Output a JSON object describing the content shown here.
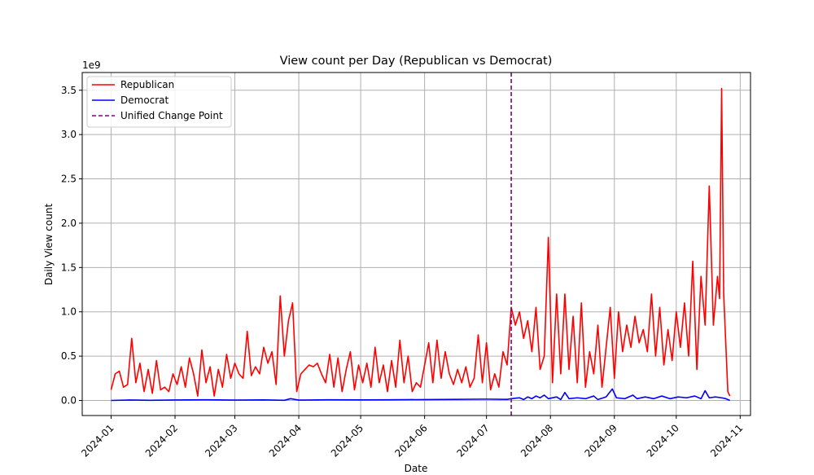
{
  "chart_data": {
    "type": "line",
    "title": "View count per Day (Republican vs Democrat)",
    "xlabel": "Date",
    "ylabel": "Daily View count",
    "y_offset_label": "1e9",
    "xlim": [
      "2023-12-18",
      "2024-11-06"
    ],
    "ylim": [
      -0.17,
      3.7
    ],
    "x_ticks": [
      "2024-01",
      "2024-02",
      "2024-03",
      "2024-04",
      "2024-05",
      "2024-06",
      "2024-07",
      "2024-08",
      "2024-09",
      "2024-10",
      "2024-11"
    ],
    "y_ticks": [
      0.0,
      0.5,
      1.0,
      1.5,
      2.0,
      2.5,
      3.0,
      3.5
    ],
    "y_tick_labels": [
      "0.0",
      "0.5",
      "1.0",
      "1.5",
      "2.0",
      "2.5",
      "3.0",
      "3.5"
    ],
    "grid": true,
    "legend_position": "top-left",
    "change_point": {
      "name": "Unified Change Point",
      "date": "2024-07-13",
      "color": "#800080",
      "style": "dashed"
    },
    "series": [
      {
        "name": "Republican",
        "color": "#ff0000",
        "points": [
          [
            "2024-01-01",
            0.12
          ],
          [
            "2024-01-03",
            0.3
          ],
          [
            "2024-01-05",
            0.33
          ],
          [
            "2024-01-07",
            0.15
          ],
          [
            "2024-01-09",
            0.18
          ],
          [
            "2024-01-11",
            0.7
          ],
          [
            "2024-01-13",
            0.2
          ],
          [
            "2024-01-15",
            0.42
          ],
          [
            "2024-01-17",
            0.1
          ],
          [
            "2024-01-19",
            0.35
          ],
          [
            "2024-01-21",
            0.08
          ],
          [
            "2024-01-23",
            0.45
          ],
          [
            "2024-01-25",
            0.12
          ],
          [
            "2024-01-27",
            0.15
          ],
          [
            "2024-01-29",
            0.1
          ],
          [
            "2024-01-31",
            0.3
          ],
          [
            "2024-02-02",
            0.18
          ],
          [
            "2024-02-04",
            0.38
          ],
          [
            "2024-02-06",
            0.15
          ],
          [
            "2024-02-08",
            0.48
          ],
          [
            "2024-02-10",
            0.3
          ],
          [
            "2024-02-12",
            0.05
          ],
          [
            "2024-02-14",
            0.57
          ],
          [
            "2024-02-16",
            0.2
          ],
          [
            "2024-02-18",
            0.38
          ],
          [
            "2024-02-20",
            0.05
          ],
          [
            "2024-02-22",
            0.35
          ],
          [
            "2024-02-24",
            0.15
          ],
          [
            "2024-02-26",
            0.52
          ],
          [
            "2024-02-28",
            0.25
          ],
          [
            "2024-03-01",
            0.42
          ],
          [
            "2024-03-03",
            0.3
          ],
          [
            "2024-03-05",
            0.25
          ],
          [
            "2024-03-07",
            0.78
          ],
          [
            "2024-03-09",
            0.28
          ],
          [
            "2024-03-11",
            0.38
          ],
          [
            "2024-03-13",
            0.3
          ],
          [
            "2024-03-15",
            0.6
          ],
          [
            "2024-03-17",
            0.42
          ],
          [
            "2024-03-19",
            0.55
          ],
          [
            "2024-03-21",
            0.18
          ],
          [
            "2024-03-23",
            1.18
          ],
          [
            "2024-03-25",
            0.5
          ],
          [
            "2024-03-27",
            0.9
          ],
          [
            "2024-03-29",
            1.1
          ],
          [
            "2024-03-31",
            0.1
          ],
          [
            "2024-04-02",
            0.3
          ],
          [
            "2024-04-04",
            0.35
          ],
          [
            "2024-04-06",
            0.4
          ],
          [
            "2024-04-08",
            0.38
          ],
          [
            "2024-04-10",
            0.42
          ],
          [
            "2024-04-12",
            0.3
          ],
          [
            "2024-04-14",
            0.2
          ],
          [
            "2024-04-16",
            0.52
          ],
          [
            "2024-04-18",
            0.15
          ],
          [
            "2024-04-20",
            0.48
          ],
          [
            "2024-04-22",
            0.1
          ],
          [
            "2024-04-24",
            0.35
          ],
          [
            "2024-04-26",
            0.55
          ],
          [
            "2024-04-28",
            0.12
          ],
          [
            "2024-04-30",
            0.4
          ],
          [
            "2024-05-02",
            0.2
          ],
          [
            "2024-05-04",
            0.42
          ],
          [
            "2024-05-06",
            0.15
          ],
          [
            "2024-05-08",
            0.6
          ],
          [
            "2024-05-10",
            0.2
          ],
          [
            "2024-05-12",
            0.4
          ],
          [
            "2024-05-14",
            0.1
          ],
          [
            "2024-05-16",
            0.45
          ],
          [
            "2024-05-18",
            0.15
          ],
          [
            "2024-05-20",
            0.68
          ],
          [
            "2024-05-22",
            0.2
          ],
          [
            "2024-05-24",
            0.5
          ],
          [
            "2024-05-26",
            0.1
          ],
          [
            "2024-05-28",
            0.2
          ],
          [
            "2024-05-30",
            0.15
          ],
          [
            "2024-06-01",
            0.4
          ],
          [
            "2024-06-03",
            0.65
          ],
          [
            "2024-06-05",
            0.2
          ],
          [
            "2024-06-07",
            0.68
          ],
          [
            "2024-06-09",
            0.25
          ],
          [
            "2024-06-11",
            0.55
          ],
          [
            "2024-06-13",
            0.3
          ],
          [
            "2024-06-15",
            0.18
          ],
          [
            "2024-06-17",
            0.35
          ],
          [
            "2024-06-19",
            0.2
          ],
          [
            "2024-06-21",
            0.38
          ],
          [
            "2024-06-23",
            0.15
          ],
          [
            "2024-06-25",
            0.25
          ],
          [
            "2024-06-27",
            0.74
          ],
          [
            "2024-06-29",
            0.2
          ],
          [
            "2024-07-01",
            0.65
          ],
          [
            "2024-07-03",
            0.12
          ],
          [
            "2024-07-05",
            0.3
          ],
          [
            "2024-07-07",
            0.15
          ],
          [
            "2024-07-09",
            0.55
          ],
          [
            "2024-07-11",
            0.4
          ],
          [
            "2024-07-13",
            1.05
          ],
          [
            "2024-07-15",
            0.85
          ],
          [
            "2024-07-17",
            1.0
          ],
          [
            "2024-07-19",
            0.7
          ],
          [
            "2024-07-21",
            0.9
          ],
          [
            "2024-07-23",
            0.55
          ],
          [
            "2024-07-25",
            1.05
          ],
          [
            "2024-07-27",
            0.35
          ],
          [
            "2024-07-29",
            0.5
          ],
          [
            "2024-07-31",
            1.84
          ],
          [
            "2024-08-02",
            0.2
          ],
          [
            "2024-08-04",
            1.2
          ],
          [
            "2024-08-06",
            0.3
          ],
          [
            "2024-08-08",
            1.2
          ],
          [
            "2024-08-10",
            0.35
          ],
          [
            "2024-08-12",
            0.95
          ],
          [
            "2024-08-14",
            0.2
          ],
          [
            "2024-08-16",
            1.1
          ],
          [
            "2024-08-18",
            0.15
          ],
          [
            "2024-08-20",
            0.55
          ],
          [
            "2024-08-22",
            0.3
          ],
          [
            "2024-08-24",
            0.85
          ],
          [
            "2024-08-26",
            0.15
          ],
          [
            "2024-08-28",
            0.6
          ],
          [
            "2024-08-30",
            1.05
          ],
          [
            "2024-09-01",
            0.25
          ],
          [
            "2024-09-03",
            1.0
          ],
          [
            "2024-09-05",
            0.55
          ],
          [
            "2024-09-07",
            0.85
          ],
          [
            "2024-09-09",
            0.6
          ],
          [
            "2024-09-11",
            0.95
          ],
          [
            "2024-09-13",
            0.65
          ],
          [
            "2024-09-15",
            0.8
          ],
          [
            "2024-09-17",
            0.55
          ],
          [
            "2024-09-19",
            1.2
          ],
          [
            "2024-09-21",
            0.5
          ],
          [
            "2024-09-23",
            1.05
          ],
          [
            "2024-09-25",
            0.4
          ],
          [
            "2024-09-27",
            0.8
          ],
          [
            "2024-09-29",
            0.45
          ],
          [
            "2024-10-01",
            1.0
          ],
          [
            "2024-10-03",
            0.6
          ],
          [
            "2024-10-05",
            1.1
          ],
          [
            "2024-10-07",
            0.5
          ],
          [
            "2024-10-09",
            1.57
          ],
          [
            "2024-10-11",
            0.35
          ],
          [
            "2024-10-13",
            1.4
          ],
          [
            "2024-10-15",
            0.85
          ],
          [
            "2024-10-17",
            2.42
          ],
          [
            "2024-10-19",
            0.85
          ],
          [
            "2024-10-21",
            1.4
          ],
          [
            "2024-10-22",
            1.15
          ],
          [
            "2024-10-23",
            3.52
          ],
          [
            "2024-10-24",
            1.2
          ],
          [
            "2024-10-26",
            0.1
          ],
          [
            "2024-10-27",
            0.05
          ]
        ]
      },
      {
        "name": "Democrat",
        "color": "#0000ff",
        "points": [
          [
            "2024-01-01",
            0.0
          ],
          [
            "2024-01-10",
            0.005
          ],
          [
            "2024-01-20",
            0.002
          ],
          [
            "2024-02-01",
            0.005
          ],
          [
            "2024-02-15",
            0.008
          ],
          [
            "2024-03-01",
            0.004
          ],
          [
            "2024-03-15",
            0.006
          ],
          [
            "2024-03-25",
            0.002
          ],
          [
            "2024-03-28",
            0.02
          ],
          [
            "2024-04-01",
            0.004
          ],
          [
            "2024-04-15",
            0.008
          ],
          [
            "2024-05-01",
            0.006
          ],
          [
            "2024-05-15",
            0.008
          ],
          [
            "2024-06-01",
            0.01
          ],
          [
            "2024-06-15",
            0.012
          ],
          [
            "2024-07-01",
            0.015
          ],
          [
            "2024-07-11",
            0.012
          ],
          [
            "2024-07-13",
            0.02
          ],
          [
            "2024-07-17",
            0.03
          ],
          [
            "2024-07-19",
            0.01
          ],
          [
            "2024-07-21",
            0.04
          ],
          [
            "2024-07-23",
            0.02
          ],
          [
            "2024-07-25",
            0.05
          ],
          [
            "2024-07-27",
            0.03
          ],
          [
            "2024-07-29",
            0.06
          ],
          [
            "2024-07-31",
            0.02
          ],
          [
            "2024-08-04",
            0.04
          ],
          [
            "2024-08-06",
            0.01
          ],
          [
            "2024-08-08",
            0.09
          ],
          [
            "2024-08-10",
            0.02
          ],
          [
            "2024-08-14",
            0.03
          ],
          [
            "2024-08-18",
            0.02
          ],
          [
            "2024-08-22",
            0.05
          ],
          [
            "2024-08-24",
            0.01
          ],
          [
            "2024-08-28",
            0.04
          ],
          [
            "2024-08-31",
            0.13
          ],
          [
            "2024-09-02",
            0.03
          ],
          [
            "2024-09-06",
            0.02
          ],
          [
            "2024-09-10",
            0.06
          ],
          [
            "2024-09-12",
            0.02
          ],
          [
            "2024-09-16",
            0.04
          ],
          [
            "2024-09-20",
            0.02
          ],
          [
            "2024-09-24",
            0.05
          ],
          [
            "2024-09-28",
            0.02
          ],
          [
            "2024-10-02",
            0.04
          ],
          [
            "2024-10-06",
            0.03
          ],
          [
            "2024-10-10",
            0.05
          ],
          [
            "2024-10-13",
            0.02
          ],
          [
            "2024-10-15",
            0.11
          ],
          [
            "2024-10-17",
            0.03
          ],
          [
            "2024-10-20",
            0.04
          ],
          [
            "2024-10-23",
            0.03
          ],
          [
            "2024-10-25",
            0.02
          ],
          [
            "2024-10-27",
            0.0
          ]
        ]
      }
    ]
  }
}
